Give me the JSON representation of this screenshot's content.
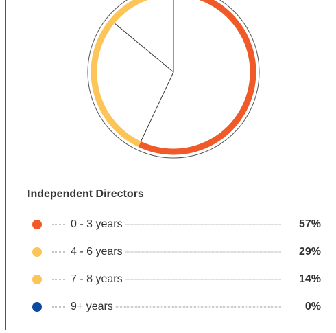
{
  "chart_data": {
    "type": "pie",
    "title": "Independent Directors",
    "categories": [
      "0 - 3 years",
      "4 - 6 years",
      "7 - 8 years",
      "9+ years"
    ],
    "values": [
      57,
      29,
      14,
      0
    ],
    "value_labels": [
      "57%",
      "29%",
      "14%",
      "0%"
    ],
    "colors": [
      "#ef5a28",
      "#fdc457",
      "#fdc457",
      "#0a4aa0"
    ]
  }
}
